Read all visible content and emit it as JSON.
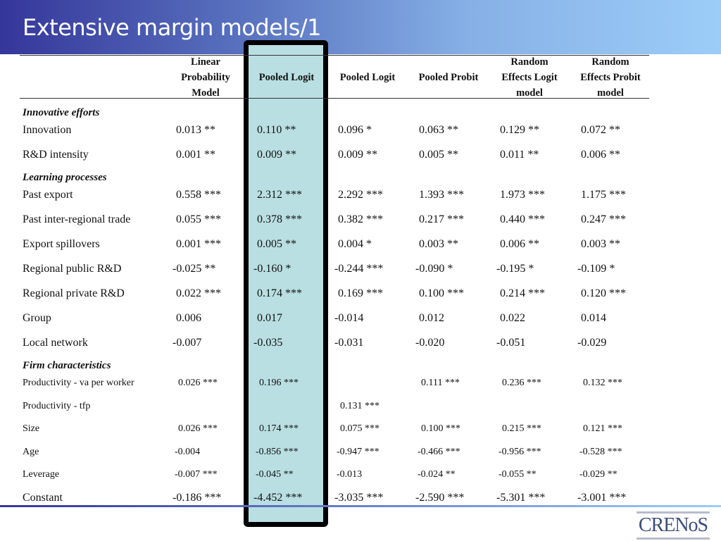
{
  "title": "Extensive margin models/1",
  "columns": [
    "Linear\nProbability\nModel",
    "Pooled Logit",
    "Pooled Logit",
    "Pooled Probit",
    "Random\nEffects Logit\nmodel",
    "Random\nEffects Probit\nmodel"
  ],
  "highlight_color": "#b9dfe2",
  "sections": [
    {
      "label": "Innovative efforts",
      "small": false,
      "rows": [
        {
          "label": "Innovation",
          "values": [
            "0.013 **",
            "0.110 **",
            "0.096 *",
            "0.063 **",
            "0.129 **",
            "0.072 **"
          ]
        },
        {
          "label": "R&D intensity",
          "values": [
            "0.001 **",
            "0.009 **",
            "0.009 **",
            "0.005 **",
            "0.011 **",
            "0.006 **"
          ]
        }
      ]
    },
    {
      "label": "Learning processes",
      "small": false,
      "rows": [
        {
          "label": "Past export",
          "values": [
            "0.558 ***",
            "2.312 ***",
            "2.292 ***",
            "1.393 ***",
            "1.973 ***",
            "1.175 ***"
          ]
        },
        {
          "label": "Past inter-regional trade",
          "values": [
            "0.055 ***",
            "0.378 ***",
            "0.382 ***",
            "0.217 ***",
            "0.440 ***",
            "0.247 ***"
          ]
        },
        {
          "label": "Export spillovers",
          "values": [
            "0.001 ***",
            "0.005 **",
            "0.004 *",
            "0.003 **",
            "0.006 **",
            "0.003 **"
          ]
        },
        {
          "label": "Regional public R&D",
          "values": [
            "-0.025 **",
            "-0.160 *",
            "-0.244 ***",
            "-0.090 *",
            "-0.195 *",
            "-0.109 *"
          ]
        },
        {
          "label": "Regional private R&D",
          "values": [
            "0.022 ***",
            "0.174 ***",
            "0.169 ***",
            "0.100 ***",
            "0.214 ***",
            "0.120 ***"
          ]
        },
        {
          "label": "Group",
          "values": [
            "0.006",
            "0.017",
            "-0.014",
            "0.012",
            "0.022",
            "0.014"
          ]
        },
        {
          "label": "Local network",
          "values": [
            "-0.007",
            "-0.035",
            "-0.031",
            "-0.020",
            "-0.051",
            "-0.029"
          ]
        }
      ]
    },
    {
      "label": "Firm characteristics",
      "small": true,
      "rows": [
        {
          "label": "Productivity - va per worker",
          "values": [
            "0.026 ***",
            "0.196 ***",
            "",
            "0.111 ***",
            "0.236 ***",
            "0.132 ***"
          ]
        },
        {
          "label": "Productivity - tfp",
          "values": [
            "",
            "",
            "0.131 ***",
            "",
            "",
            ""
          ]
        },
        {
          "label": "Size",
          "values": [
            "0.026 ***",
            "0.174 ***",
            "0.075 ***",
            "0.100 ***",
            "0.215 ***",
            "0.121 ***"
          ]
        },
        {
          "label": "Age",
          "values": [
            "-0.004",
            "-0.856 ***",
            "-0.947 ***",
            "-0.466 ***",
            "-0.956 ***",
            "-0.528 ***"
          ]
        },
        {
          "label": "Leverage",
          "values": [
            "-0.007 ***",
            "-0.045 **",
            "-0.013",
            "-0.024 **",
            "-0.055 **",
            "-0.029 **"
          ]
        }
      ]
    }
  ],
  "constant": {
    "label": "Constant",
    "values": [
      "-0.186 ***",
      "-4.452 ***",
      "-3.035 ***",
      "-2.590 ***",
      "-5.301 ***",
      "-3.001 ***"
    ]
  },
  "logo": "CRENoS"
}
